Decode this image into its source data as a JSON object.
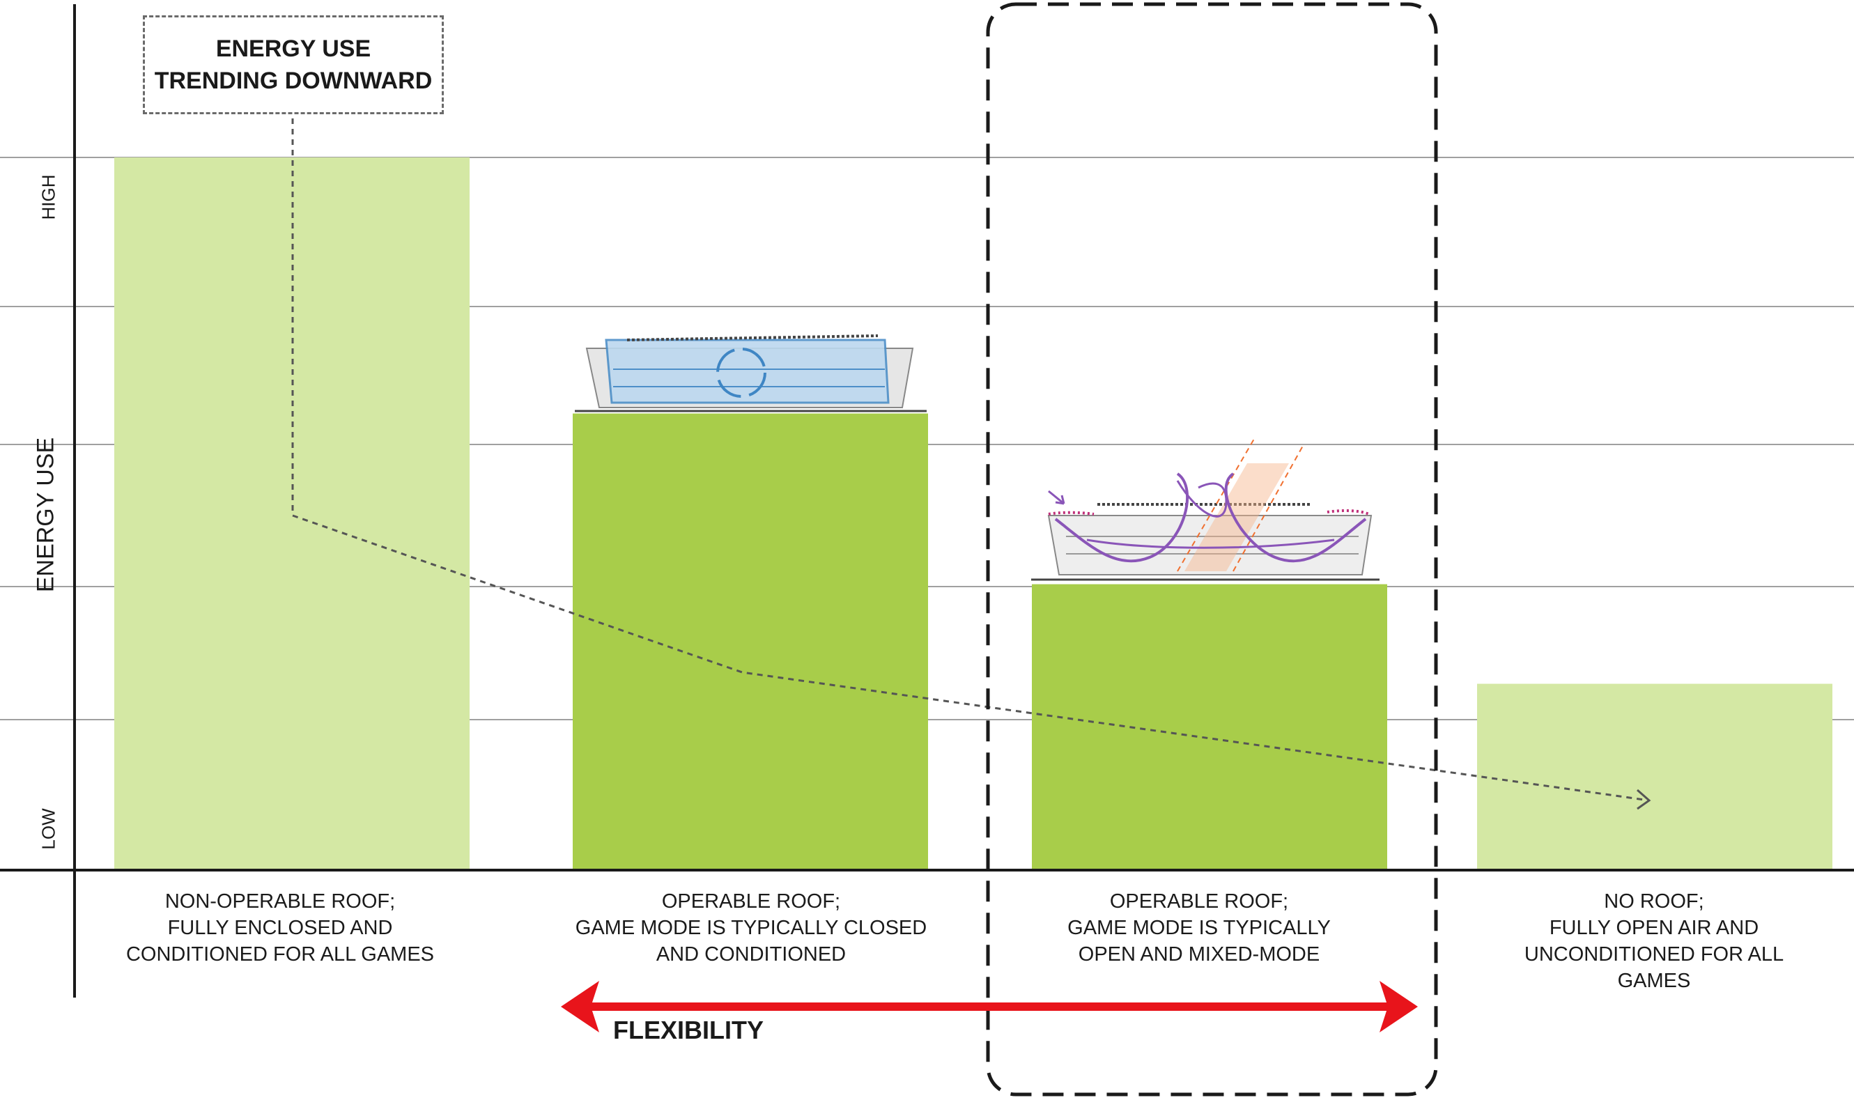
{
  "chart_data": {
    "type": "bar",
    "title": "",
    "xlabel": "",
    "ylabel": "ENERGY USE",
    "y_ticks": [
      "HIGH",
      "LOW"
    ],
    "ylim": [
      0,
      5
    ],
    "grid": true,
    "categories": [
      [
        "NON-OPERABLE ROOF;",
        "FULLY ENCLOSED AND",
        "CONDITIONED FOR ALL GAMES"
      ],
      [
        "OPERABLE ROOF;",
        "GAME MODE IS TYPICALLY CLOSED",
        "AND CONDITIONED"
      ],
      [
        "OPERABLE ROOF;",
        "GAME MODE IS TYPICALLY",
        "OPEN AND MIXED-MODE"
      ],
      [
        "NO ROOF;",
        "FULLY OPEN AIR AND",
        "UNCONDITIONED FOR ALL",
        "GAMES"
      ]
    ],
    "values": [
      5.0,
      3.2,
      2.0,
      1.3
    ],
    "bar_colors": [
      "#d4e8a4",
      "#a8cd4a",
      "#a8cd4a",
      "#d4e8a4"
    ],
    "trend_annotation": [
      "ENERGY USE",
      "TRENDING DOWNWARD"
    ],
    "flexibility_label": "FLEXIBILITY",
    "highlighted_category_index": 2,
    "colors": {
      "arrow": "#e8141b",
      "axis": "#1a1a1a",
      "grid": "#a0a0a0",
      "trend": "#555555"
    }
  }
}
